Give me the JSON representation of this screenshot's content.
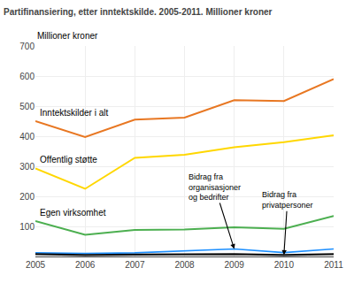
{
  "chart_data": {
    "type": "line",
    "title": "Partifinansiering, etter inntektskilde. 2005-2011. Millioner kroner",
    "ylabel": "Millioner kroner",
    "x": [
      2005,
      2006,
      2007,
      2008,
      2009,
      2010,
      2011
    ],
    "series": [
      {
        "name": "Inntektskilder i alt",
        "color": "#E87722",
        "values": [
          450,
          397,
          455,
          462,
          520,
          517,
          590
        ]
      },
      {
        "name": "Offentlig støtte",
        "color": "#FFD700",
        "values": [
          293,
          225,
          328,
          338,
          363,
          380,
          403
        ]
      },
      {
        "name": "Egen virksomhet",
        "color": "#4CAF50",
        "values": [
          118,
          72,
          88,
          90,
          97,
          92,
          135
        ]
      },
      {
        "name": "Bidrag fra\norganisasjoner\nog bedrifter",
        "color": "#1E90FF",
        "values": [
          12,
          10,
          12,
          18,
          25,
          13,
          25
        ]
      },
      {
        "name": "Bidrag fra\nprivatpersoner",
        "color": "#111111",
        "values": [
          8,
          5,
          6,
          8,
          8,
          5,
          8
        ]
      }
    ],
    "xlim": [
      2005,
      2011
    ],
    "xticks": [
      2005,
      2006,
      2007,
      2008,
      2009,
      2010,
      2011
    ],
    "ylim": [
      0,
      700
    ],
    "yticks": [
      100,
      200,
      300,
      400,
      500,
      600,
      700
    ],
    "grid": true
  }
}
